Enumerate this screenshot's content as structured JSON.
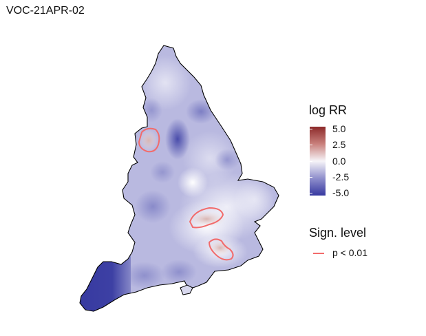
{
  "title": "VOC-21APR-02",
  "legend": {
    "title": "log RR",
    "ticks": [
      "5.0",
      "2.5",
      "0.0",
      "-2.5",
      "-5.0"
    ],
    "colors": {
      "high": "#8c2a2a",
      "mid": "#f6f4f8",
      "low": "#3638a0"
    }
  },
  "significance": {
    "title": "Sign. level",
    "label": "p < 0.01",
    "color": "#f26b6b"
  }
}
